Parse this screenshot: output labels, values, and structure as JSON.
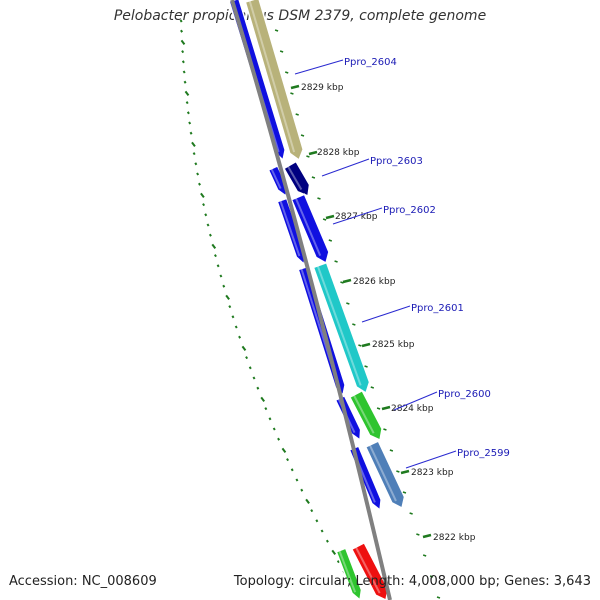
{
  "title": "Pelobacter propionicus DSM 2379, complete genome",
  "footer": {
    "accession": "Accession: NC_008609",
    "summary": "Topology: circular; Length: 4,008,000 bp; Genes: 3,643"
  },
  "colors": {
    "backbone": "#808080",
    "tick": "#1f7a1f",
    "label": "#1b1bb5",
    "label_line": "#2a2ad0",
    "gene_blue": "#1010e0",
    "gene_navy": "#000080",
    "gene_khaki": "#b8b27a",
    "gene_cyan": "#20c8c8",
    "gene_green": "#2ec42e",
    "gene_steel": "#4f7fb8",
    "gene_red": "#ee1010"
  },
  "scale_labels": [
    "2829 kbp",
    "2828 kbp",
    "2827 kbp",
    "2826 kbp",
    "2825 kbp",
    "2824 kbp",
    "2823 kbp",
    "2822 kbp"
  ],
  "gene_labels": [
    "Ppro_2604",
    "Ppro_2603",
    "Ppro_2602",
    "Ppro_2601",
    "Ppro_2600",
    "Ppro_2599"
  ],
  "genes": [
    {
      "strand": "minus",
      "color": "gene_blue"
    },
    {
      "strand": "plus",
      "color": "gene_khaki",
      "label": "Ppro_2604"
    },
    {
      "strand": "minus",
      "color": "gene_blue"
    },
    {
      "strand": "plus",
      "color": "gene_navy",
      "label": "Ppro_2603"
    },
    {
      "strand": "minus",
      "color": "gene_blue"
    },
    {
      "strand": "plus",
      "color": "gene_blue",
      "label": "Ppro_2602"
    },
    {
      "strand": "minus",
      "color": "gene_blue"
    },
    {
      "strand": "plus",
      "color": "gene_cyan",
      "label": "Ppro_2601"
    },
    {
      "strand": "minus",
      "color": "gene_blue"
    },
    {
      "strand": "plus",
      "color": "gene_green",
      "label": "Ppro_2600"
    },
    {
      "strand": "minus",
      "color": "gene_blue"
    },
    {
      "strand": "plus",
      "color": "gene_steel",
      "label": "Ppro_2599"
    },
    {
      "strand": "minus",
      "color": "gene_green"
    },
    {
      "strand": "plus",
      "color": "gene_red"
    }
  ]
}
